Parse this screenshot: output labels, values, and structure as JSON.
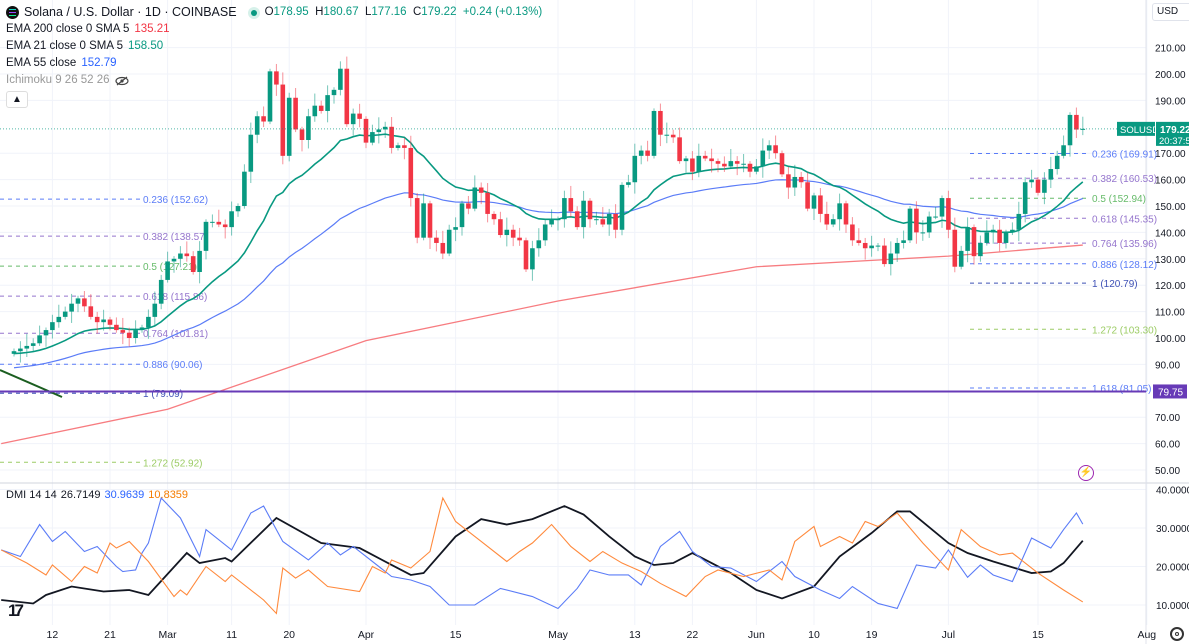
{
  "header": {
    "symbol_title": "Solana / U.S. Dollar · 1D · COINBASE",
    "ohlc": {
      "o_label": "O",
      "o": "178.95",
      "h_label": "H",
      "h": "180.67",
      "l_label": "L",
      "l": "177.16",
      "c_label": "C",
      "c": "179.22",
      "change": "+0.24 (+0.13%)"
    },
    "indicators": [
      {
        "label": "EMA 200 close 0 SMA 5",
        "value": "135.21",
        "color": "#f23645"
      },
      {
        "label": "EMA 21 close 0 SMA 5",
        "value": "158.50",
        "color": "#089981"
      },
      {
        "label": "EMA 55 close",
        "value": "152.79",
        "color": "#2962ff"
      },
      {
        "label": "Ichimoku 9 26 52 26",
        "value": ""
      }
    ],
    "collapse_icon": "chevron-up-icon",
    "hidden_icon": "eye-off-icon"
  },
  "currency": "USD",
  "price_tag": {
    "symbol": "SOLUSD",
    "price": "179.22",
    "countdown": "20:37:5"
  },
  "hline_tag": "79.75",
  "dmi_legend": {
    "label": "DMI 14 14",
    "adx": "26.7149",
    "plus_di": "30.9639",
    "minus_di": "10.8359"
  },
  "colors": {
    "up": "#089981",
    "down": "#f23645",
    "ema200": "#f77c80",
    "ema21": "#089981",
    "ema55": "#5b7cf7",
    "hline": "#673ab7",
    "adx": "#131722",
    "plus_di": "#5b7cf7",
    "minus_di": "#ff8a3d"
  },
  "chart_data": [
    {
      "type": "candlestick",
      "title": "Solana / U.S. Dollar · 1D · COINBASE",
      "start_date": "Feb 6",
      "first_open": 94,
      "closes": [
        95,
        96,
        97,
        98,
        101,
        103,
        106,
        108,
        110,
        113,
        115,
        112,
        108,
        106,
        107,
        105,
        103,
        102,
        100,
        103,
        104,
        108,
        113,
        122,
        129,
        130,
        132,
        131,
        125,
        133,
        144,
        144,
        143,
        142,
        148,
        150,
        163,
        177,
        184,
        182,
        201,
        196,
        169,
        191,
        179,
        175,
        184,
        188,
        186,
        192,
        194,
        202,
        181,
        185,
        183,
        174,
        178,
        179,
        180,
        172,
        173,
        172,
        153,
        138,
        151,
        138,
        136,
        132,
        141,
        142,
        151,
        149,
        157,
        155,
        147,
        145,
        139,
        141,
        138,
        137,
        126,
        134,
        137,
        143,
        145,
        145,
        153,
        148,
        142,
        152,
        145,
        145,
        143,
        147,
        141,
        158,
        159,
        169,
        171,
        169,
        186,
        177,
        177,
        176,
        167,
        168,
        163,
        169,
        168,
        167,
        166,
        165,
        167,
        166,
        166,
        163,
        165,
        171,
        173,
        170,
        162,
        157,
        161,
        159,
        149,
        154,
        147,
        143,
        145,
        151,
        143,
        137,
        136,
        134,
        135,
        135,
        128,
        132,
        136,
        137,
        149,
        140,
        140,
        146,
        146,
        153,
        141,
        127,
        133,
        142,
        131,
        136,
        140,
        141,
        136,
        140,
        141,
        147,
        159,
        160,
        155,
        160,
        164,
        169,
        173,
        184.5,
        178.95,
        179.22
      ],
      "ema200_anchors": [
        [
          -2,
          60
        ],
        [
          24,
          73
        ],
        [
          55,
          99
        ],
        [
          85,
          114
        ],
        [
          116,
          127
        ],
        [
          146,
          131
        ],
        [
          167,
          135.21
        ]
      ],
      "ema21_seed": 94,
      "ema55_seed": 88.5,
      "y_ticks": [
        210,
        200,
        190,
        170,
        160,
        150,
        140,
        130,
        120,
        110,
        100,
        90,
        70,
        60,
        50
      ],
      "ylim": [
        45,
        215
      ],
      "x_ticks": [
        {
          "label": "12",
          "idx": 6
        },
        {
          "label": "21",
          "idx": 15
        },
        {
          "label": "Mar",
          "idx": 24
        },
        {
          "label": "11",
          "idx": 34
        },
        {
          "label": "20",
          "idx": 43
        },
        {
          "label": "Apr",
          "idx": 55
        },
        {
          "label": "15",
          "idx": 69
        },
        {
          "label": "May",
          "idx": 85
        },
        {
          "label": "13",
          "idx": 97
        },
        {
          "label": "22",
          "idx": 106
        },
        {
          "label": "Jun",
          "idx": 116
        },
        {
          "label": "10",
          "idx": 125
        },
        {
          "label": "19",
          "idx": 134
        },
        {
          "label": "Jul",
          "idx": 146
        },
        {
          "label": "15",
          "idx": 160
        },
        {
          "label": "Aug",
          "idx": 177
        }
      ],
      "horizontal_line": 79.75,
      "fib_left": [
        {
          "label": "0.236 (152.62)",
          "value": 152.62,
          "color": "#5b7cf7"
        },
        {
          "label": "0.382 (138.57)",
          "value": 138.57,
          "color": "#9575cd"
        },
        {
          "label": "0.5 (127.21)",
          "value": 127.21,
          "color": "#66bb6a"
        },
        {
          "label": "0.618 (115.86)",
          "value": 115.86,
          "color": "#9575cd"
        },
        {
          "label": "0.764 (101.81)",
          "value": 101.81,
          "color": "#9575cd"
        },
        {
          "label": "0.886 (90.06)",
          "value": 90.06,
          "color": "#5b7cf7"
        },
        {
          "label": "1 (79.09)",
          "value": 79.09,
          "color": "#3f51b5"
        },
        {
          "label": "1.272 (52.92)",
          "value": 52.92,
          "color": "#9ccc65"
        }
      ],
      "fib_right": [
        {
          "label": "0.236 (169.91)",
          "value": 169.91,
          "color": "#5b7cf7"
        },
        {
          "label": "0.382 (160.53)",
          "value": 160.53,
          "color": "#9575cd"
        },
        {
          "label": "0.5 (152.94)",
          "value": 152.94,
          "color": "#66bb6a"
        },
        {
          "label": "0.618 (145.35)",
          "value": 145.35,
          "color": "#9575cd"
        },
        {
          "label": "0.764 (135.96)",
          "value": 135.96,
          "color": "#9575cd"
        },
        {
          "label": "0.886 (128.12)",
          "value": 128.12,
          "color": "#5b7cf7"
        },
        {
          "label": "1 (120.79)",
          "value": 120.79,
          "color": "#3f51b5"
        },
        {
          "label": "1.272 (103.30)",
          "value": 103.3,
          "color": "#9ccc65"
        },
        {
          "label": "1.618 (81.05)",
          "value": 81.05,
          "color": "#5b7cf7"
        }
      ]
    },
    {
      "type": "line",
      "title": "DMI 14 14",
      "ylim": [
        5,
        41
      ],
      "y_ticks": [
        "40.0000",
        "30.0000",
        "20.0000",
        "10.0000"
      ],
      "y_tick_values": [
        40,
        30,
        20,
        10
      ],
      "series": [
        {
          "name": "ADX",
          "values": [
            [
              -2,
              11.3
            ],
            [
              3,
              10.4
            ],
            [
              5,
              12.6
            ],
            [
              9,
              14.8
            ],
            [
              14,
              13.5
            ],
            [
              18,
              13.9
            ],
            [
              21,
              12.6
            ],
            [
              27,
              23.5
            ],
            [
              29,
              20.9
            ],
            [
              33,
              22.2
            ],
            [
              34,
              21.3
            ],
            [
              41,
              32.6
            ],
            [
              48,
              26.1
            ],
            [
              54,
              24.8
            ],
            [
              59,
              20.4
            ],
            [
              62,
              17.8
            ],
            [
              64,
              18.3
            ],
            [
              69,
              27.8
            ],
            [
              73,
              32.3
            ],
            [
              77,
              30.9
            ],
            [
              81,
              32.3
            ],
            [
              86,
              35.7
            ],
            [
              89,
              33.5
            ],
            [
              93,
              27.8
            ],
            [
              97,
              22.6
            ],
            [
              100,
              20.4
            ],
            [
              103,
              20.9
            ],
            [
              106,
              23.5
            ],
            [
              112,
              18.3
            ],
            [
              116,
              13.9
            ],
            [
              120,
              11.7
            ],
            [
              125,
              14.8
            ],
            [
              129,
              22.6
            ],
            [
              134,
              28.7
            ],
            [
              138,
              34.3
            ],
            [
              140,
              34.3
            ],
            [
              146,
              26.1
            ],
            [
              149,
              23.5
            ],
            [
              153,
              21.3
            ],
            [
              159,
              18.3
            ],
            [
              162,
              18.7
            ],
            [
              164,
              20.9
            ],
            [
              167,
              26.7
            ]
          ]
        },
        {
          "name": "+DI",
          "values": [
            [
              -2,
              24.3
            ],
            [
              1,
              22.6
            ],
            [
              4,
              30.9
            ],
            [
              6,
              26.5
            ],
            [
              8,
              29.1
            ],
            [
              11,
              23.9
            ],
            [
              13,
              25.2
            ],
            [
              16,
              20
            ],
            [
              17,
              18.7
            ],
            [
              19,
              19.1
            ],
            [
              20,
              23.5
            ],
            [
              21,
              26.1
            ],
            [
              23,
              37.8
            ],
            [
              26,
              32.6
            ],
            [
              29,
              22.6
            ],
            [
              30,
              29.6
            ],
            [
              34,
              24.3
            ],
            [
              37,
              33.9
            ],
            [
              39,
              35.7
            ],
            [
              42,
              26.5
            ],
            [
              46,
              21.7
            ],
            [
              49,
              26.1
            ],
            [
              51,
              23
            ],
            [
              53,
              25.2
            ],
            [
              59,
              17.4
            ],
            [
              62,
              16.5
            ],
            [
              65,
              14.8
            ],
            [
              68,
              10
            ],
            [
              72,
              10
            ],
            [
              76,
              14.3
            ],
            [
              81,
              12.2
            ],
            [
              85,
              9.1
            ],
            [
              88,
              14.3
            ],
            [
              90,
              19.1
            ],
            [
              93,
              17.8
            ],
            [
              96,
              17.8
            ],
            [
              98,
              15.2
            ],
            [
              101,
              25.2
            ],
            [
              104,
              29.1
            ],
            [
              106,
              23.9
            ],
            [
              109,
              20
            ],
            [
              112,
              19.6
            ],
            [
              116,
              16.1
            ],
            [
              120,
              21.3
            ],
            [
              122,
              17.4
            ],
            [
              126,
              13.9
            ],
            [
              129,
              11.7
            ],
            [
              131,
              14.8
            ],
            [
              135,
              10.4
            ],
            [
              138,
              9.1
            ],
            [
              141,
              20.4
            ],
            [
              144,
              19.6
            ],
            [
              146,
              24.3
            ],
            [
              149,
              17.2
            ],
            [
              151,
              20.4
            ],
            [
              153,
              17.8
            ],
            [
              156,
              16.1
            ],
            [
              159,
              27.4
            ],
            [
              162,
              24.8
            ],
            [
              164,
              29.6
            ],
            [
              166,
              33.9
            ],
            [
              167,
              31
            ]
          ]
        },
        {
          "name": "-DI",
          "values": [
            [
              -2,
              24.3
            ],
            [
              2,
              20.9
            ],
            [
              5,
              17.8
            ],
            [
              6,
              20.4
            ],
            [
              9,
              16.1
            ],
            [
              11,
              20
            ],
            [
              13,
              18.3
            ],
            [
              15,
              26.1
            ],
            [
              16,
              24.8
            ],
            [
              18,
              26.5
            ],
            [
              21,
              21.3
            ],
            [
              25,
              12.2
            ],
            [
              26,
              13.9
            ],
            [
              27,
              12.6
            ],
            [
              30,
              20
            ],
            [
              33,
              16.1
            ],
            [
              34,
              17.8
            ],
            [
              39,
              11.3
            ],
            [
              41,
              7.8
            ],
            [
              42,
              19.6
            ],
            [
              44,
              17
            ],
            [
              46,
              19.1
            ],
            [
              49,
              14.8
            ],
            [
              54,
              13.5
            ],
            [
              56,
              20
            ],
            [
              58,
              18.3
            ],
            [
              59,
              21.7
            ],
            [
              62,
              19.6
            ],
            [
              65,
              23.9
            ],
            [
              67,
              37.8
            ],
            [
              69,
              31.7
            ],
            [
              73,
              26.5
            ],
            [
              77,
              21.3
            ],
            [
              79,
              23.9
            ],
            [
              81,
              26.1
            ],
            [
              84,
              30.9
            ],
            [
              87,
              25.2
            ],
            [
              90,
              21.3
            ],
            [
              92,
              23.9
            ],
            [
              95,
              20.9
            ],
            [
              98,
              18.7
            ],
            [
              101,
              15.6
            ],
            [
              105,
              12.2
            ],
            [
              108,
              17.4
            ],
            [
              110,
              19.1
            ],
            [
              114,
              17.4
            ],
            [
              118,
              19.1
            ],
            [
              120,
              16.5
            ],
            [
              122,
              26.5
            ],
            [
              125,
              30.4
            ],
            [
              126,
              25.2
            ],
            [
              129,
              27.8
            ],
            [
              131,
              26.1
            ],
            [
              133,
              31.7
            ],
            [
              135,
              30.4
            ],
            [
              138,
              33.9
            ],
            [
              142,
              26.1
            ],
            [
              146,
              19.1
            ],
            [
              148,
              29.6
            ],
            [
              151,
              25.2
            ],
            [
              154,
              23
            ],
            [
              156,
              23.5
            ],
            [
              160,
              18.3
            ],
            [
              164,
              13.9
            ],
            [
              167,
              10.8
            ]
          ]
        }
      ]
    }
  ]
}
